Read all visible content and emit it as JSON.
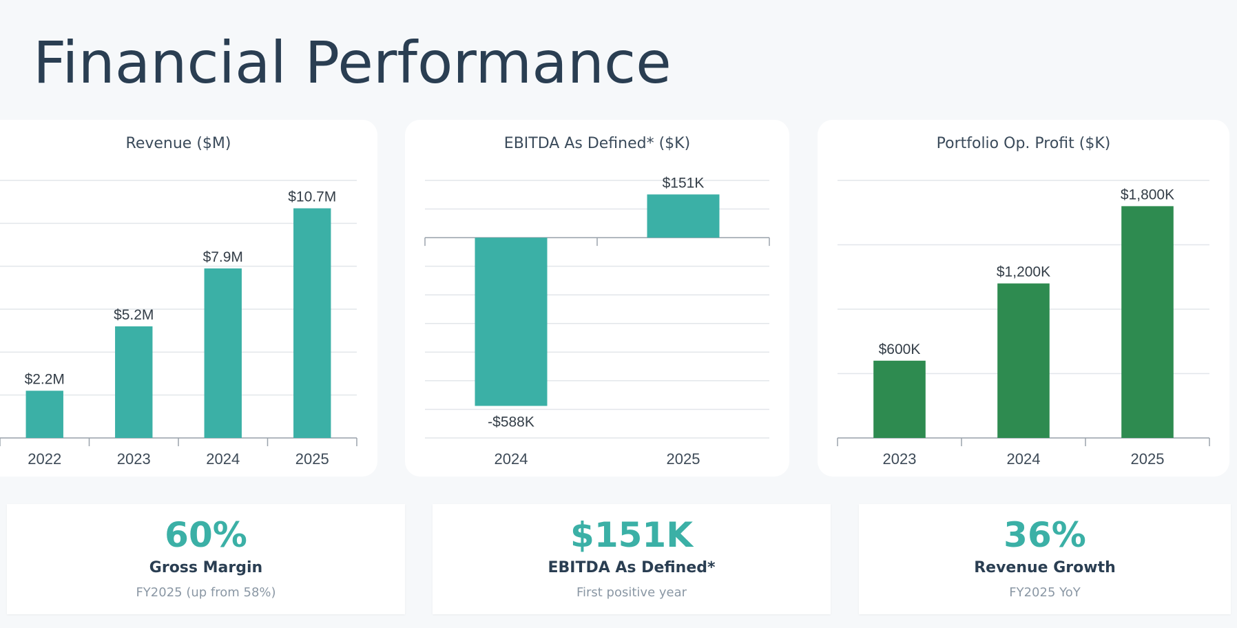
{
  "page": {
    "title": "Financial Performance"
  },
  "chart_data": [
    {
      "type": "bar",
      "title": "Revenue ($M)",
      "categories": [
        "2022",
        "2023",
        "2024",
        "2025"
      ],
      "values": [
        2.2,
        5.2,
        7.9,
        10.7
      ],
      "value_labels": [
        "$2.2M",
        "$5.2M",
        "$7.9M",
        "$10.7M"
      ],
      "ylim": [
        0,
        12
      ],
      "y_gridline_step": 2,
      "color": "#3bb0a6",
      "grid": true
    },
    {
      "type": "bar",
      "title": "EBITDA As Defined* ($K)",
      "categories": [
        "2024",
        "2025"
      ],
      "values": [
        -588,
        151
      ],
      "value_labels": [
        "-$588K",
        "$151K"
      ],
      "ylim": [
        -700,
        200
      ],
      "y_gridline_step": 100,
      "color": "#3bb0a6",
      "grid": true
    },
    {
      "type": "bar",
      "title": "Portfolio Op. Profit ($K)",
      "categories": [
        "2023",
        "2024",
        "2025"
      ],
      "values": [
        600,
        1200,
        1800
      ],
      "value_labels": [
        "$600K",
        "$1,200K",
        "$1,800K"
      ],
      "ylim": [
        0,
        2000
      ],
      "y_gridline_step": 500,
      "color": "#2e8b50",
      "grid": true
    }
  ],
  "kpis": [
    {
      "value": "60%",
      "label": "Gross Margin",
      "sub": "FY2025 (up from 58%)"
    },
    {
      "value": "$151K",
      "label": "EBITDA As Defined*",
      "sub": "First positive year"
    },
    {
      "value": "36%",
      "label": "Revenue Growth",
      "sub": "FY2025 YoY"
    }
  ]
}
